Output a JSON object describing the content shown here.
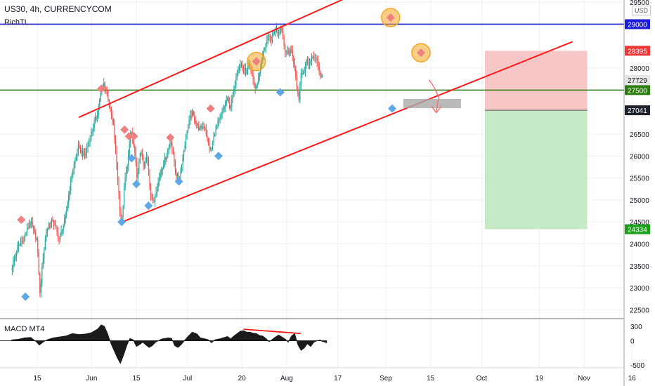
{
  "header": {
    "title": "US30, 4h, CURRENCYCOM",
    "indicator": "RichTL",
    "currency": "USD"
  },
  "colors": {
    "up": "#26a69a",
    "down": "#ef5350",
    "channel": "#ff1a1a",
    "level_blue": "#1c1cd6",
    "level_green": "#2e7d0f",
    "marker_red": "#f07f7f",
    "marker_blue": "#5fa8e8",
    "circle": "#f5a623",
    "stop_zone": "#f7c6c6",
    "target_zone": "#c6e9c6"
  },
  "chart_data": {
    "type": "candlestick",
    "symbol": "US30",
    "timeframe": "4h",
    "source": "CURRENCYCOM",
    "ylim": [
      22300,
      29550
    ],
    "yticks": [
      22500,
      23000,
      23500,
      24000,
      24500,
      25000,
      25500,
      26000,
      26500,
      28000,
      29500
    ],
    "x_labels": [
      {
        "label": "15",
        "x": 0
      },
      {
        "label": "Jun",
        "x": 17
      },
      {
        "label": "15",
        "x": 31
      },
      {
        "label": "Jul",
        "x": 47
      },
      {
        "label": "20",
        "x": 64
      },
      {
        "label": "Aug",
        "x": 78
      },
      {
        "label": "17",
        "x": 94
      },
      {
        "label": "Sep",
        "x": 109
      },
      {
        "label": "15",
        "x": 123
      },
      {
        "label": "Oct",
        "x": 139
      },
      {
        "label": "19",
        "x": 157
      },
      {
        "label": "Nov",
        "x": 171
      },
      {
        "label": "16",
        "x": 186
      }
    ],
    "price_path": [
      [
        -8,
        23400
      ],
      [
        -6,
        23900
      ],
      [
        -4,
        24150
      ],
      [
        -2,
        24500
      ],
      [
        0,
        24100
      ],
      [
        0.5,
        23600
      ],
      [
        1,
        22850
      ],
      [
        2,
        23700
      ],
      [
        3,
        24300
      ],
      [
        5,
        24550
      ],
      [
        7,
        24100
      ],
      [
        9,
        24600
      ],
      [
        11,
        25600
      ],
      [
        13,
        26200
      ],
      [
        15,
        26000
      ],
      [
        17,
        26500
      ],
      [
        19,
        27000
      ],
      [
        20,
        27400
      ],
      [
        21,
        27650
      ],
      [
        22,
        27450
      ],
      [
        23,
        27000
      ],
      [
        24,
        26700
      ],
      [
        25,
        25800
      ],
      [
        26,
        24800
      ],
      [
        26.6,
        24500
      ],
      [
        27.5,
        25400
      ],
      [
        28.5,
        25900
      ],
      [
        29.5,
        26600
      ],
      [
        30.5,
        26150
      ],
      [
        31.5,
        25450
      ],
      [
        32.5,
        26200
      ],
      [
        33.5,
        25700
      ],
      [
        34.5,
        26000
      ],
      [
        35.5,
        25200
      ],
      [
        36.5,
        24900
      ],
      [
        37.5,
        25300
      ],
      [
        39,
        25700
      ],
      [
        40.5,
        26000
      ],
      [
        42,
        26350
      ],
      [
        43.5,
        25600
      ],
      [
        44.5,
        25450
      ],
      [
        45.5,
        25900
      ],
      [
        47,
        26600
      ],
      [
        48.5,
        27000
      ],
      [
        49.5,
        26800
      ],
      [
        51,
        26600
      ],
      [
        52.5,
        26700
      ],
      [
        53.5,
        26300
      ],
      [
        54.5,
        26100
      ],
      [
        55.5,
        26500
      ],
      [
        57,
        26800
      ],
      [
        58.5,
        27100
      ],
      [
        59.5,
        27300
      ],
      [
        60.5,
        27100
      ],
      [
        61.5,
        27400
      ],
      [
        62.5,
        27900
      ],
      [
        63.5,
        28100
      ],
      [
        64.5,
        28000
      ],
      [
        65.5,
        27900
      ],
      [
        66.5,
        28050
      ],
      [
        67.5,
        27800
      ],
      [
        68.5,
        27500
      ],
      [
        69.5,
        27850
      ],
      [
        70.5,
        28200
      ],
      [
        71.5,
        28550
      ],
      [
        72.5,
        28700
      ],
      [
        73.5,
        28650
      ],
      [
        74.5,
        28900
      ],
      [
        75.5,
        28800
      ],
      [
        76.5,
        28950
      ],
      [
        77.5,
        28450
      ],
      [
        78.5,
        28300
      ],
      [
        79.5,
        28450
      ],
      [
        80.5,
        28100
      ],
      [
        81.5,
        27500
      ],
      [
        82,
        27300
      ],
      [
        82.7,
        27950
      ],
      [
        83.5,
        27900
      ],
      [
        84.5,
        28200
      ],
      [
        85.5,
        28100
      ],
      [
        86.5,
        28300
      ],
      [
        87.5,
        28150
      ],
      [
        88.5,
        27900
      ],
      [
        89,
        27780
      ]
    ],
    "candle_range": [
      -8,
      89
    ],
    "price_labels": [
      {
        "price": 29000,
        "text": "29000",
        "bg": "#1c1cd6",
        "fg": "#ffffff"
      },
      {
        "price": 28395,
        "text": "28395",
        "bg": "#ef3636",
        "fg": "#ffffff"
      },
      {
        "price": 27729,
        "text": "27729",
        "bg": "#e6e6e6",
        "fg": "#131722"
      },
      {
        "price": 27500,
        "text": "27500",
        "bg": "#2e7d0f",
        "fg": "#ffffff"
      },
      {
        "price": 27041,
        "text": "27041",
        "bg": "#1e222d",
        "fg": "#ffffff"
      },
      {
        "price": 24334,
        "text": "24334",
        "bg": "#1aa11a",
        "fg": "#ffffff"
      }
    ],
    "levels": [
      {
        "price": 29000,
        "color": "#1c1cd6"
      },
      {
        "price": 27500,
        "color": "#2e7d0f"
      }
    ],
    "channel_upper": [
      [
        13,
        26880
      ],
      [
        109,
        30000
      ]
    ],
    "channel_lower": [
      [
        26.6,
        24500
      ],
      [
        167.4,
        28600
      ]
    ],
    "red_markers": [
      {
        "x": -5,
        "price": 24550
      },
      {
        "x": 20,
        "price": 27530
      },
      {
        "x": 27.3,
        "price": 26600
      },
      {
        "x": 28.7,
        "price": 26450
      },
      {
        "x": 30.2,
        "price": 26450
      },
      {
        "x": 41.6,
        "price": 26420
      },
      {
        "x": 54.2,
        "price": 27080
      },
      {
        "x": 68.5,
        "price": 28150
      },
      {
        "x": 110.5,
        "price": 29150
      },
      {
        "x": 120,
        "price": 28350
      }
    ],
    "blue_markers": [
      {
        "x": -3.7,
        "price": 22800
      },
      {
        "x": 26.4,
        "price": 24500
      },
      {
        "x": 29.5,
        "price": 25950
      },
      {
        "x": 31,
        "price": 25360
      },
      {
        "x": 34.8,
        "price": 24870
      },
      {
        "x": 44.3,
        "price": 25420
      },
      {
        "x": 56.7,
        "price": 26000
      },
      {
        "x": 76,
        "price": 27450
      },
      {
        "x": 111,
        "price": 27080
      }
    ],
    "circles": [
      {
        "x": 68.5,
        "price": 28150
      },
      {
        "x": 110.5,
        "price": 29150
      },
      {
        "x": 120,
        "price": 28350
      }
    ],
    "rect_gray": {
      "x0": 114.5,
      "x1": 132.5,
      "price_top": 27300,
      "price_bottom": 27090
    },
    "arrow_path": [
      [
        122.5,
        27730
      ],
      [
        124.4,
        27560
      ],
      [
        125.5,
        27330
      ],
      [
        124.8,
        27020
      ]
    ],
    "position_box": {
      "x0": 140,
      "x1": 172,
      "stop": 28395,
      "entry": 27041,
      "target": 24334
    },
    "macd": {
      "title": "MACD MT4",
      "ylim": [
        -560,
        460
      ],
      "yticks": [
        {
          "value": 300,
          "label": "300"
        },
        {
          "value": 0,
          "label": "0"
        },
        {
          "value": -500,
          "label": "-500"
        }
      ],
      "points": [
        [
          -8,
          20
        ],
        [
          -6,
          30
        ],
        [
          -4,
          60
        ],
        [
          -2,
          70
        ],
        [
          0,
          -40
        ],
        [
          0.6,
          -90
        ],
        [
          1,
          -70
        ],
        [
          2,
          -20
        ],
        [
          3,
          20
        ],
        [
          5,
          60
        ],
        [
          7,
          80
        ],
        [
          9,
          100
        ],
        [
          11,
          150
        ],
        [
          13,
          130
        ],
        [
          15,
          140
        ],
        [
          17,
          170
        ],
        [
          19,
          250
        ],
        [
          20,
          330
        ],
        [
          21,
          300
        ],
        [
          22,
          150
        ],
        [
          23,
          -50
        ],
        [
          24,
          -200
        ],
        [
          25,
          -350
        ],
        [
          26,
          -470
        ],
        [
          27,
          -300
        ],
        [
          28,
          -100
        ],
        [
          29,
          50
        ],
        [
          30,
          20
        ],
        [
          31,
          -120
        ],
        [
          32,
          -80
        ],
        [
          33,
          -30
        ],
        [
          34,
          -90
        ],
        [
          35,
          -140
        ],
        [
          36,
          -100
        ],
        [
          37,
          -30
        ],
        [
          39,
          40
        ],
        [
          41,
          60
        ],
        [
          42,
          50
        ],
        [
          43,
          -100
        ],
        [
          44,
          -140
        ],
        [
          45,
          -80
        ],
        [
          47,
          80
        ],
        [
          48.5,
          180
        ],
        [
          50,
          140
        ],
        [
          51,
          60
        ],
        [
          52.5,
          40
        ],
        [
          53.5,
          20
        ],
        [
          54.5,
          -40
        ],
        [
          55.5,
          20
        ],
        [
          57,
          40
        ],
        [
          58.5,
          70
        ],
        [
          59.5,
          90
        ],
        [
          60.5,
          40
        ],
        [
          61.5,
          100
        ],
        [
          62.5,
          150
        ],
        [
          63.5,
          200
        ],
        [
          64.5,
          210
        ],
        [
          65.5,
          180
        ],
        [
          66.5,
          180
        ],
        [
          67.5,
          160
        ],
        [
          68.5,
          150
        ],
        [
          69.5,
          110
        ],
        [
          70.5,
          100
        ],
        [
          71.5,
          50
        ],
        [
          72.5,
          -20
        ],
        [
          73.5,
          30
        ],
        [
          74.5,
          80
        ],
        [
          75.5,
          120
        ],
        [
          76.5,
          80
        ],
        [
          77.5,
          40
        ],
        [
          78.5,
          -30
        ],
        [
          79.5,
          100
        ],
        [
          80.5,
          150
        ],
        [
          81.5,
          -80
        ],
        [
          82.5,
          -200
        ],
        [
          83.5,
          -150
        ],
        [
          84.5,
          -60
        ],
        [
          85.5,
          -120
        ],
        [
          86.5,
          -30
        ],
        [
          87.5,
          0
        ],
        [
          88.5,
          20
        ],
        [
          89,
          -10
        ],
        [
          90.5,
          -40
        ]
      ],
      "divergence_line": [
        [
          64.5,
          240
        ],
        [
          82.5,
          150
        ]
      ]
    }
  }
}
